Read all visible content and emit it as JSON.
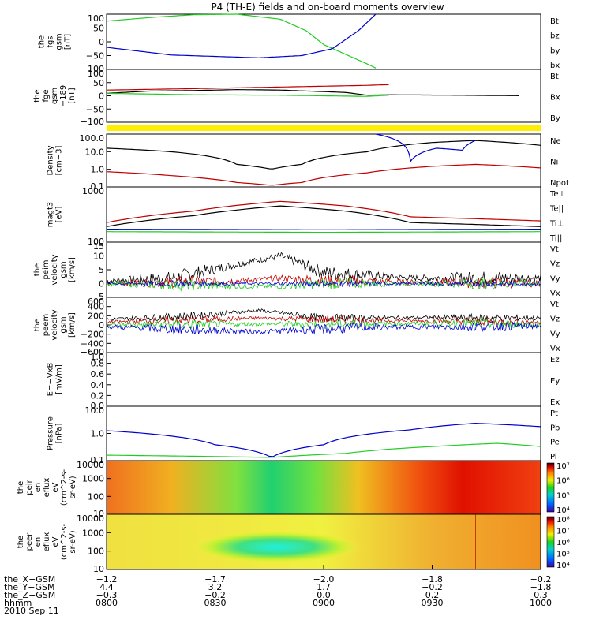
{
  "title": "P4 (TH-E) fields and on-board moments overview",
  "colors": {
    "black": "#000000",
    "red": "#c00000",
    "green": "#22cc22",
    "blue": "#0000cc",
    "yellow": "#ffee00"
  },
  "chart_data": [
    {
      "type": "line",
      "ylabel": [
        "the",
        "fgs",
        "gsm",
        "[nT]"
      ],
      "yticks": [
        "100",
        "50",
        "0",
        "−50",
        "−100"
      ],
      "ylim": [
        -100,
        100
      ],
      "legend": [
        {
          "name": "Bt",
          "color": "#000000"
        },
        {
          "name": "bz",
          "color": "#c00000"
        },
        {
          "name": "by",
          "color": "#22cc22"
        },
        {
          "name": "bx",
          "color": "#0000cc"
        }
      ],
      "series": [
        {
          "name": "by",
          "color": "#22cc22",
          "x": [
            0,
            0.1,
            0.2,
            0.3,
            0.4,
            0.46,
            0.5,
            0.6,
            0.62
          ],
          "values": [
            75,
            88,
            98,
            100,
            82,
            40,
            -10,
            -80,
            -95
          ]
        },
        {
          "name": "bx",
          "color": "#0000cc",
          "x": [
            0,
            0.15,
            0.35,
            0.45,
            0.52,
            0.58,
            0.62
          ],
          "values": [
            -20,
            -48,
            -58,
            -50,
            -25,
            40,
            100
          ]
        }
      ]
    },
    {
      "type": "line",
      "ylabel": [
        "the",
        "fge",
        "gsm",
        "−189",
        "[nT]"
      ],
      "yticks": [
        "100",
        "50",
        "0",
        "−50",
        "−100"
      ],
      "ylim": [
        -125,
        100
      ],
      "legend": [
        {
          "name": "Bt",
          "color": "#000000"
        },
        {
          "name": "Bx",
          "color": "#c00000"
        },
        {
          "name": "By",
          "color": "#22cc22"
        }
      ],
      "series": [
        {
          "name": "Bt",
          "color": "#000000",
          "x": [
            0,
            0.1,
            0.2,
            0.3,
            0.4,
            0.55,
            0.6,
            0.65,
            0.95
          ],
          "values": [
            -2,
            8,
            10,
            14,
            12,
            2,
            -10,
            -8,
            -12
          ]
        },
        {
          "name": "Bx",
          "color": "#c00000",
          "x": [
            0,
            0.2,
            0.4,
            0.6,
            0.65
          ],
          "values": [
            12,
            18,
            25,
            32,
            35
          ]
        },
        {
          "name": "By",
          "color": "#22cc22",
          "x": [
            0,
            0.2,
            0.4,
            0.6,
            0.65
          ],
          "values": [
            -2,
            -8,
            -10,
            -15,
            -10
          ]
        }
      ]
    },
    {
      "type": "line",
      "log": true,
      "ylabel": [
        "Density",
        "[cm−3]"
      ],
      "yticks": [
        "100.0",
        "10.0",
        "1.0",
        "0.1"
      ],
      "ylim": [
        0.08,
        150
      ],
      "legend": [
        {
          "name": "Ne",
          "color": "#c00000"
        },
        {
          "name": "Ni",
          "color": "#000000"
        },
        {
          "name": "Npot",
          "color": "#0000cc"
        }
      ],
      "series": [
        {
          "name": "Ni",
          "color": "#000000",
          "x": [
            0,
            0.15,
            0.3,
            0.38,
            0.45,
            0.6,
            0.75,
            0.85,
            1
          ],
          "values": [
            20,
            12,
            2,
            1,
            2,
            12,
            45,
            60,
            30
          ]
        },
        {
          "name": "Ne",
          "color": "#c00000",
          "x": [
            0,
            0.15,
            0.3,
            0.38,
            0.45,
            0.6,
            0.75,
            0.85,
            1
          ],
          "values": [
            0.7,
            0.4,
            0.15,
            0.1,
            0.15,
            0.6,
            1.5,
            2,
            1.2
          ]
        },
        {
          "name": "Npot",
          "color": "#0000cc",
          "x": [
            0.62,
            0.7,
            0.76,
            0.82,
            0.85
          ],
          "values": [
            150,
            3,
            20,
            15,
            60
          ]
        }
      ]
    },
    {
      "type": "line",
      "log": true,
      "ylabel": [
        "magt3",
        "[eV]"
      ],
      "yticks": [
        "1000",
        "100"
      ],
      "ylim": [
        100,
        5000
      ],
      "legend": [
        {
          "name": "Te⊥",
          "color": "#c00000"
        },
        {
          "name": "Te||",
          "color": "#000000"
        },
        {
          "name": "Ti⊥",
          "color": "#0000cc"
        },
        {
          "name": "Ti||",
          "color": "#22cc22"
        }
      ],
      "series": [
        {
          "name": "Te⊥",
          "color": "#c00000",
          "x": [
            0,
            0.2,
            0.4,
            0.55,
            0.7,
            1
          ],
          "values": [
            400,
            900,
            1800,
            1300,
            600,
            450
          ]
        },
        {
          "name": "Te||",
          "color": "#000000",
          "x": [
            0,
            0.2,
            0.4,
            0.55,
            0.7,
            1
          ],
          "values": [
            300,
            650,
            1300,
            900,
            400,
            300
          ]
        },
        {
          "name": "Ti⊥",
          "color": "#0000cc",
          "x": [
            0,
            0.5,
            1
          ],
          "values": [
            250,
            240,
            250
          ]
        },
        {
          "name": "Ti||",
          "color": "#22cc22",
          "x": [
            0,
            0.5,
            1
          ],
          "values": [
            210,
            200,
            210
          ]
        }
      ]
    },
    {
      "type": "line",
      "ylabel": [
        "the",
        "peim",
        "velocity",
        "gsm",
        "[km/s]"
      ],
      "yticks": [
        "15",
        "10",
        "5",
        "0",
        "−5"
      ],
      "ylim": [
        -5,
        15
      ],
      "legend": [
        {
          "name": "Vt",
          "color": "#000000"
        },
        {
          "name": "Vz",
          "color": "#c00000"
        },
        {
          "name": "Vy",
          "color": "#22cc22"
        },
        {
          "name": "Vx",
          "color": "#0000cc"
        }
      ],
      "series": [
        {
          "name": "Vt",
          "color": "#000000",
          "x": [
            0,
            0.15,
            0.3,
            0.4,
            0.5,
            0.7,
            1
          ],
          "values": [
            1,
            2,
            7,
            10,
            4,
            2,
            2
          ],
          "noise": 1.8
        },
        {
          "name": "Vz",
          "color": "#c00000",
          "x": [
            0,
            0.3,
            0.4,
            0.5,
            1
          ],
          "values": [
            0,
            1,
            2,
            1,
            0
          ],
          "noise": 1.5
        },
        {
          "name": "Vy",
          "color": "#22cc22",
          "x": [
            0,
            0.3,
            0.4,
            0.5,
            1
          ],
          "values": [
            0,
            -1,
            -1,
            0,
            0
          ],
          "noise": 1.4
        },
        {
          "name": "Vx",
          "color": "#0000cc",
          "x": [
            0,
            1
          ],
          "values": [
            0,
            0
          ],
          "noise": 0.8
        }
      ]
    },
    {
      "type": "line",
      "ylabel": [
        "the",
        "peem",
        "velocity",
        "gsm",
        "[km/s]"
      ],
      "yticks": [
        "600",
        "400",
        "200",
        "0",
        "−200",
        "−400",
        "−600"
      ],
      "ylim": [
        -600,
        600
      ],
      "legend": [
        {
          "name": "Vt",
          "color": "#000000"
        },
        {
          "name": "Vz",
          "color": "#c00000"
        },
        {
          "name": "Vy",
          "color": "#22cc22"
        },
        {
          "name": "Vx",
          "color": "#0000cc"
        }
      ],
      "series": [
        {
          "name": "Vt",
          "color": "#000000",
          "x": [
            0,
            0.2,
            0.35,
            0.5,
            0.7,
            1
          ],
          "values": [
            120,
            200,
            320,
            150,
            160,
            150
          ],
          "noise": 60
        },
        {
          "name": "Vz",
          "color": "#c00000",
          "x": [
            0,
            0.35,
            0.6,
            1
          ],
          "values": [
            60,
            150,
            100,
            60
          ],
          "noise": 60
        },
        {
          "name": "Vy",
          "color": "#22cc22",
          "x": [
            0,
            0.35,
            0.6,
            0.8,
            1
          ],
          "values": [
            0,
            20,
            20,
            40,
            10
          ],
          "noise": 70
        },
        {
          "name": "Vx",
          "color": "#0000cc",
          "x": [
            0,
            0.35,
            0.6,
            1
          ],
          "values": [
            -40,
            -150,
            -50,
            -20
          ],
          "noise": 80
        }
      ]
    },
    {
      "type": "line",
      "ylabel": [
        "E=−VxB",
        "[mV/m]"
      ],
      "yticks": [
        "1.0",
        "0.8",
        "0.6",
        "0.4",
        "0.2",
        "0.0"
      ],
      "ylim": [
        0,
        1
      ],
      "legend": [
        {
          "name": "Ez",
          "color": "#c00000"
        },
        {
          "name": "Ey",
          "color": "#22cc22"
        },
        {
          "name": "Ex",
          "color": "#0000cc"
        }
      ],
      "series": []
    },
    {
      "type": "line",
      "log": true,
      "ylabel": [
        "Pressure",
        "[nPa]"
      ],
      "yticks": [
        "10.0",
        "1.0",
        "0.1"
      ],
      "ylim": [
        0.02,
        20
      ],
      "legend": [
        {
          "name": "Pt",
          "color": "#000000"
        },
        {
          "name": "Pb",
          "color": "#c00000"
        },
        {
          "name": "Pe",
          "color": "#22cc22"
        },
        {
          "name": "Pi",
          "color": "#0000cc"
        }
      ],
      "series": [
        {
          "name": "Pi",
          "color": "#0000cc",
          "x": [
            0,
            0.1,
            0.25,
            0.38,
            0.5,
            0.7,
            0.85,
            1
          ],
          "values": [
            0.9,
            0.6,
            0.15,
            0.03,
            0.15,
            1,
            2.3,
            1.5
          ]
        },
        {
          "name": "Pe",
          "color": "#22cc22",
          "x": [
            0,
            0.2,
            0.38,
            0.55,
            0.75,
            0.9,
            1
          ],
          "values": [
            0.04,
            0.035,
            0.03,
            0.05,
            0.12,
            0.18,
            0.12
          ]
        }
      ]
    },
    {
      "type": "heatmap",
      "ylabel": [
        "the",
        "peir",
        "en",
        "eflux",
        "eV",
        "(cm^2-s-",
        "sr-eV)"
      ],
      "yticks": [
        "10000",
        "1000",
        "100",
        "10"
      ],
      "colorbar": {
        "ticks": [
          "10⁷",
          "10⁶",
          "10⁵",
          "10⁴"
        ]
      }
    },
    {
      "type": "heatmap",
      "ylabel": [
        "the",
        "peer",
        "en",
        "eflux",
        "eV",
        "(cm^2-s-",
        "sr-eV)"
      ],
      "yticks": [
        "10000",
        "1000",
        "100",
        "10"
      ],
      "colorbar": {
        "ticks": [
          "10⁸",
          "10⁷",
          "10⁶",
          "10⁵",
          "10⁴"
        ]
      }
    }
  ],
  "xaxis": {
    "rows": [
      {
        "label": "the_X−GSM",
        "values": [
          "−1.2",
          "−1.7",
          "−2.0",
          "−1.8",
          "−0.2"
        ]
      },
      {
        "label": "the_Y−GSM",
        "values": [
          "4.4",
          "3.2",
          "1.7",
          "−0.2",
          "−1.8"
        ]
      },
      {
        "label": "the_Z−GSM",
        "values": [
          "−0.3",
          "−0.2",
          "0.0",
          "0.2",
          "0.3"
        ]
      },
      {
        "label": "hhmm",
        "values": [
          "0800",
          "0830",
          "0900",
          "0930",
          "1000"
        ]
      }
    ],
    "date": "2010 Sep 11"
  }
}
